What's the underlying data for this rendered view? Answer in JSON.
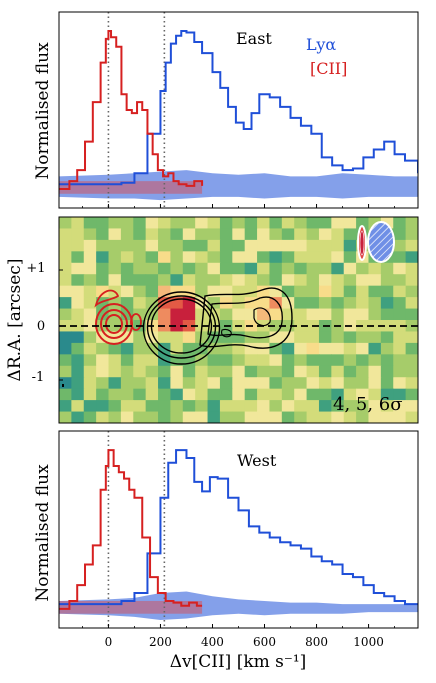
{
  "chart_data": [
    {
      "type": "line",
      "panel": "East",
      "title": "East",
      "ylabel": "Normalised flux",
      "xlim": [
        -190,
        1190
      ],
      "ylim": [
        -0.12,
        1.12
      ],
      "legend": {
        "placement": "top-right",
        "entries": [
          {
            "label": "Lyα",
            "color": "#1f4fd8"
          },
          {
            "label": "[CII]",
            "color": "#d62020"
          }
        ]
      },
      "vlines": [
        0,
        215
      ],
      "series": [
        {
          "name": "Lyα",
          "color": "#1f4fd8",
          "style": "step",
          "x": [
            -190,
            -100,
            -50,
            0,
            50,
            100,
            150,
            200,
            220,
            240,
            260,
            280,
            300,
            330,
            360,
            400,
            430,
            460,
            490,
            520,
            550,
            580,
            620,
            660,
            700,
            740,
            780,
            820,
            860,
            900,
            940,
            980,
            1020,
            1060,
            1100,
            1140,
            1190
          ],
          "y": [
            0.03,
            0.03,
            0.03,
            0.03,
            0.04,
            0.1,
            0.35,
            0.62,
            0.8,
            0.92,
            0.97,
            1.0,
            0.99,
            0.93,
            0.86,
            0.74,
            0.64,
            0.52,
            0.42,
            0.38,
            0.48,
            0.6,
            0.58,
            0.52,
            0.45,
            0.4,
            0.35,
            0.2,
            0.15,
            0.12,
            0.13,
            0.2,
            0.25,
            0.3,
            0.22,
            0.18,
            0.1
          ]
        },
        {
          "name": "[CII]",
          "color": "#d62020",
          "style": "step",
          "x": [
            -190,
            -150,
            -120,
            -90,
            -60,
            -30,
            -10,
            0,
            10,
            30,
            50,
            70,
            90,
            110,
            130,
            150,
            170,
            190,
            210,
            230,
            250,
            270,
            300,
            330,
            360
          ],
          "y": [
            0.0,
            0.05,
            0.12,
            0.3,
            0.55,
            0.8,
            0.95,
            1.0,
            0.96,
            0.9,
            0.6,
            0.5,
            0.48,
            0.55,
            0.5,
            0.35,
            0.22,
            0.12,
            0.08,
            0.1,
            0.05,
            0.03,
            0.02,
            0.05,
            0.02
          ]
        }
      ],
      "noise_band_blue": {
        "x": [
          -190,
          0,
          100,
          200,
          300,
          400,
          500,
          600,
          700,
          800,
          900,
          1000,
          1100,
          1190
        ],
        "lo": [
          -0.05,
          -0.06,
          -0.06,
          -0.07,
          -0.06,
          -0.05,
          -0.05,
          -0.06,
          -0.05,
          -0.05,
          -0.06,
          -0.05,
          -0.05,
          -0.05
        ],
        "hi": [
          0.08,
          0.09,
          0.1,
          0.11,
          0.12,
          0.1,
          0.09,
          0.1,
          0.08,
          0.08,
          0.1,
          0.09,
          0.08,
          0.08
        ]
      },
      "noise_band_red": {
        "x": [
          -190,
          360
        ],
        "lo": -0.03,
        "hi": 0.05
      }
    },
    {
      "type": "heatmap",
      "ylabel": "ΔR.A. [arcsec]",
      "yticks": [
        "+1",
        "0",
        "-1"
      ],
      "annotation": "4, 5, 6σ",
      "contour_levels": [
        "4",
        "5",
        "6"
      ]
    },
    {
      "type": "line",
      "panel": "West",
      "title": "West",
      "xlabel": "Δv[CII] [km s⁻¹]",
      "ylabel": "Normalised flux",
      "xlim": [
        -190,
        1190
      ],
      "ylim": [
        -0.12,
        1.12
      ],
      "xticks": [
        0,
        200,
        400,
        600,
        800,
        1000
      ],
      "vlines": [
        0,
        215
      ],
      "series": [
        {
          "name": "Lyα",
          "color": "#1f4fd8",
          "style": "step",
          "x": [
            -190,
            -100,
            -50,
            0,
            50,
            100,
            150,
            200,
            230,
            260,
            300,
            330,
            360,
            390,
            420,
            460,
            500,
            540,
            580,
            620,
            660,
            700,
            740,
            780,
            820,
            860,
            900,
            940,
            980,
            1020,
            1060,
            1100,
            1140,
            1190
          ],
          "y": [
            0.03,
            0.03,
            0.03,
            0.03,
            0.05,
            0.1,
            0.35,
            0.7,
            0.92,
            1.0,
            0.95,
            0.8,
            0.74,
            0.83,
            0.82,
            0.7,
            0.62,
            0.52,
            0.48,
            0.45,
            0.42,
            0.4,
            0.38,
            0.33,
            0.3,
            0.28,
            0.22,
            0.2,
            0.15,
            0.1,
            0.08,
            0.05,
            0.03,
            0.03
          ]
        },
        {
          "name": "[CII]",
          "color": "#d62020",
          "style": "step",
          "x": [
            -190,
            -150,
            -120,
            -90,
            -60,
            -30,
            -10,
            0,
            20,
            40,
            60,
            80,
            100,
            130,
            160,
            190,
            220,
            250,
            280,
            310,
            340,
            360
          ],
          "y": [
            0.0,
            0.05,
            0.15,
            0.28,
            0.4,
            0.75,
            0.9,
            1.0,
            0.9,
            0.86,
            0.82,
            0.75,
            0.7,
            0.45,
            0.2,
            0.1,
            0.05,
            0.04,
            0.02,
            0.04,
            0.02,
            0.02
          ]
        }
      ],
      "noise_band_blue": {
        "x": [
          -190,
          0,
          100,
          200,
          300,
          400,
          500,
          600,
          700,
          800,
          900,
          1000,
          1100,
          1190
        ],
        "lo": [
          -0.03,
          -0.04,
          -0.05,
          -0.07,
          -0.06,
          -0.04,
          -0.03,
          -0.04,
          -0.03,
          -0.03,
          -0.03,
          -0.02,
          -0.02,
          -0.02
        ],
        "hi": [
          0.05,
          0.06,
          0.07,
          0.1,
          0.11,
          0.08,
          0.06,
          0.05,
          0.04,
          0.04,
          0.03,
          0.03,
          0.03,
          0.03
        ]
      },
      "noise_band_red": {
        "x": [
          -190,
          360
        ],
        "lo": -0.03,
        "hi": 0.05
      }
    }
  ]
}
